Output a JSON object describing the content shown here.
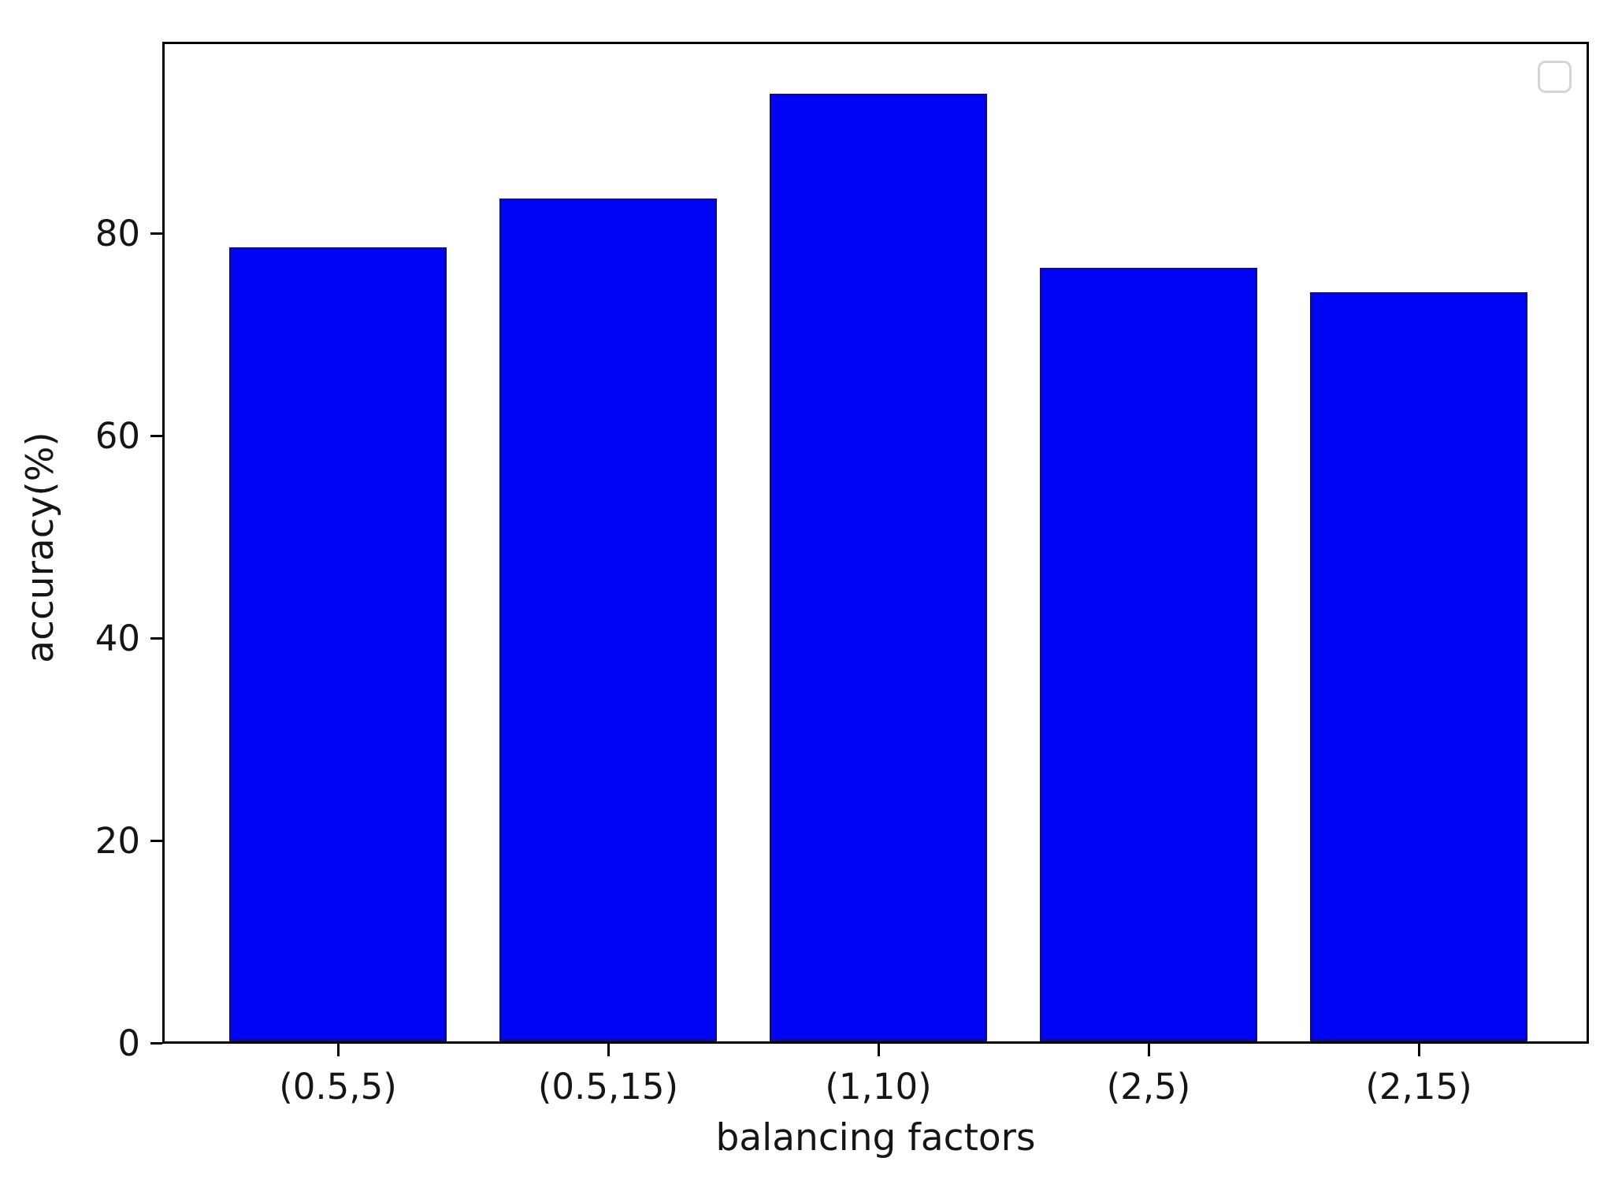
{
  "figure": {
    "background": "#ffffff",
    "axis_color": "#000000"
  },
  "chart_data": {
    "type": "bar",
    "title": "",
    "xlabel": "balancing factors",
    "ylabel": "accuracy(%)",
    "categories": [
      "(0.5,5)",
      "(0.5,15)",
      "(1,10)",
      "(2,5)",
      "(2,15)"
    ],
    "values": [
      78.8,
      83.7,
      94.1,
      76.8,
      74.4
    ],
    "ylim": [
      0,
      99
    ],
    "yticks": [
      0,
      20,
      40,
      60,
      80
    ],
    "grid": false,
    "legend": {
      "position": "upper-right",
      "entries": [],
      "empty_box": true
    },
    "bar_color": "#0105f6",
    "bar_edge_color": "#0b0b9e"
  }
}
